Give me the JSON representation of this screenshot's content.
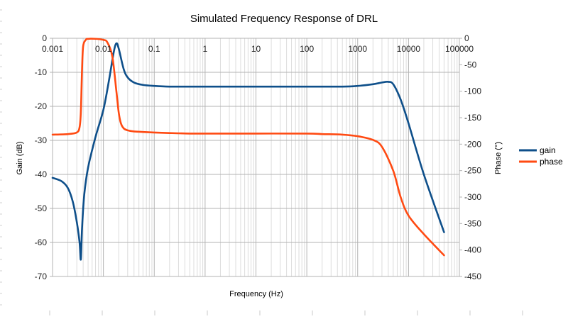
{
  "chart_data": {
    "type": "line",
    "title": "Simulated Frequency Response of DRL",
    "xlabel": "Frequency (Hz)",
    "ylabel": "Gain (dB)",
    "y2label": "Phase (°)",
    "xscale": "log",
    "xlim": [
      0.001,
      100000
    ],
    "ylim": [
      -70,
      0
    ],
    "y2lim": [
      -450,
      0
    ],
    "grid": true,
    "legend_position": "right",
    "x_tick_labels": [
      "0.001",
      "0.01",
      "0.1",
      "1",
      "10",
      "100",
      "1000",
      "10000",
      "100000"
    ],
    "x_tick_values": [
      0.001,
      0.01,
      0.1,
      1,
      10,
      100,
      1000,
      10000,
      100000
    ],
    "y_tick_labels": [
      "0",
      "-10",
      "-20",
      "-30",
      "-40",
      "-50",
      "-60",
      "-70"
    ],
    "y_tick_values": [
      0,
      -10,
      -20,
      -30,
      -40,
      -50,
      -60,
      -70
    ],
    "y2_tick_labels": [
      "0",
      "-50",
      "-100",
      "-150",
      "-200",
      "-250",
      "-300",
      "-350",
      "-400",
      "-450"
    ],
    "y2_tick_values": [
      0,
      -50,
      -100,
      -150,
      -200,
      -250,
      -300,
      -350,
      -400,
      -450
    ],
    "series": [
      {
        "name": "gain",
        "axis": "left",
        "color": "#0e4f8a",
        "x": [
          0.001,
          0.0015,
          0.002,
          0.0025,
          0.003,
          0.0034,
          0.0036,
          0.0038,
          0.0042,
          0.005,
          0.007,
          0.01,
          0.013,
          0.016,
          0.018,
          0.02,
          0.025,
          0.03,
          0.04,
          0.06,
          0.1,
          0.2,
          0.5,
          1,
          10,
          100,
          500,
          1000,
          2000,
          3000,
          4000,
          5000,
          7000,
          10000,
          20000,
          50000
        ],
        "y": [
          -41,
          -42,
          -44,
          -48,
          -54,
          -60,
          -65,
          -56,
          -46,
          -38,
          -29,
          -21,
          -12,
          -4,
          -1.5,
          -3,
          -9,
          -11.5,
          -13,
          -13.7,
          -14,
          -14.2,
          -14.2,
          -14.2,
          -14.2,
          -14.2,
          -14.2,
          -14,
          -13.5,
          -13,
          -12.8,
          -13.5,
          -18,
          -25,
          -40,
          -57
        ]
      },
      {
        "name": "phase",
        "axis": "right",
        "color": "#ff4a12",
        "x": [
          0.001,
          0.002,
          0.003,
          0.0034,
          0.0036,
          0.0038,
          0.004,
          0.0045,
          0.005,
          0.007,
          0.01,
          0.012,
          0.015,
          0.018,
          0.02,
          0.022,
          0.025,
          0.03,
          0.04,
          0.06,
          0.1,
          0.2,
          0.5,
          1,
          10,
          100,
          200,
          500,
          1000,
          2000,
          3000,
          5000,
          7000,
          10000,
          20000,
          50000
        ],
        "y": [
          -182,
          -181,
          -178,
          -168,
          -140,
          -60,
          -15,
          -3,
          -1,
          -1,
          -3,
          -8,
          -35,
          -100,
          -140,
          -160,
          -170,
          -174,
          -176,
          -177,
          -178,
          -179,
          -180,
          -180,
          -180,
          -180,
          -181,
          -182,
          -185,
          -192,
          -205,
          -250,
          -300,
          -335,
          -370,
          -410
        ]
      }
    ]
  }
}
